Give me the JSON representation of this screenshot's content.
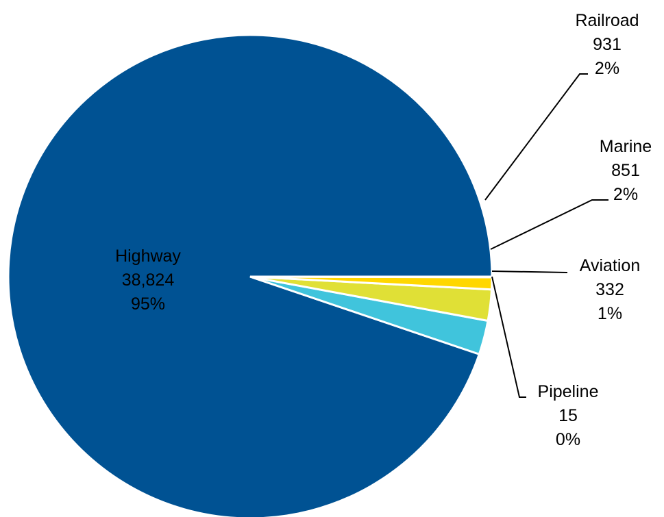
{
  "chart_data": {
    "type": "pie",
    "start_angle_deg": 0,
    "direction": "counterclockwise",
    "slices": [
      {
        "label": "Highway",
        "value": 38824,
        "value_text": "38,824",
        "percent_text": "95%",
        "color": "#005293"
      },
      {
        "label": "Railroad",
        "value": 931,
        "value_text": "931",
        "percent_text": "2%",
        "color": "#40C4DC"
      },
      {
        "label": "Marine",
        "value": 851,
        "value_text": "851",
        "percent_text": "2%",
        "color": "#E0E036"
      },
      {
        "label": "Aviation",
        "value": 332,
        "value_text": "332",
        "percent_text": "1%",
        "color": "#FFD700"
      },
      {
        "label": "Pipeline",
        "value": 15,
        "value_text": "15",
        "percent_text": "0%",
        "color": "#FFF08A"
      }
    ]
  }
}
